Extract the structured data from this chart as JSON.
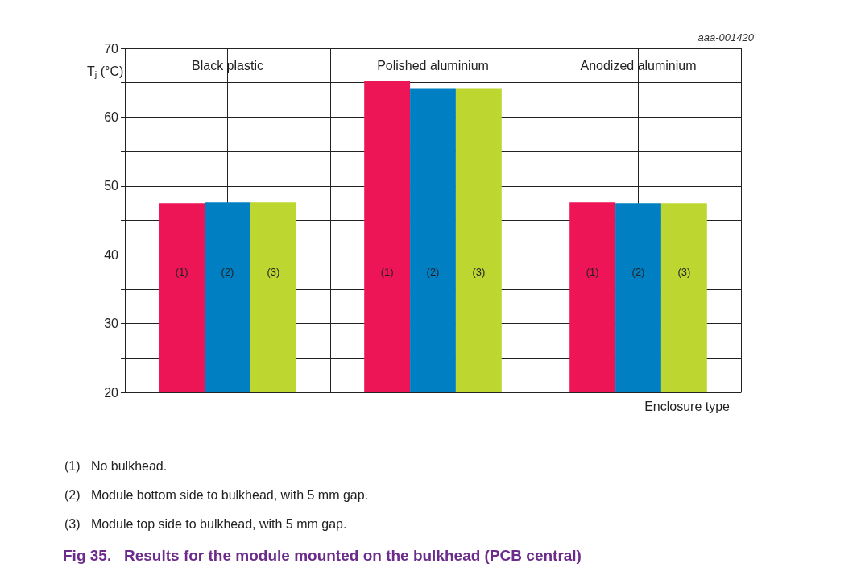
{
  "chart_data": {
    "type": "bar",
    "title": "Fig 35.   Results for the module mounted on the bulkhead (PCB central)",
    "xlabel": "Enclosure type",
    "ylabel": "T$_{j}$ (°C)",
    "categories": [
      "Black plastic",
      "Polished aluminium",
      "Anodized aluminium"
    ],
    "series": [
      {
        "name": "(1)",
        "color": "#ed1556",
        "values": [
          47.5,
          65.2,
          47.6
        ]
      },
      {
        "name": "(2)",
        "color": "#0080c3",
        "values": [
          47.6,
          64.2,
          47.5
        ]
      },
      {
        "name": "(3)",
        "color": "#bed630",
        "values": [
          47.6,
          64.2,
          47.5
        ]
      }
    ],
    "ylim": [
      20,
      70
    ],
    "yticks": [
      20,
      {
        "value": 25,
        "label": null
      },
      30,
      {
        "value": 35,
        "label": null
      },
      40,
      {
        "value": 45,
        "label": null
      },
      50,
      {
        "value": 55,
        "label": null
      },
      60,
      {
        "value": 65,
        "label": null
      },
      70
    ],
    "grid": true,
    "legend": false,
    "annotations": [
      "aaa-001420",
      "(1)   No bulkhead.",
      "(2)   Module bottom side to bulkhead, with 5 mm gap.",
      "(3)   Module top side to bulkhead, with 5 mm gap."
    ]
  }
}
